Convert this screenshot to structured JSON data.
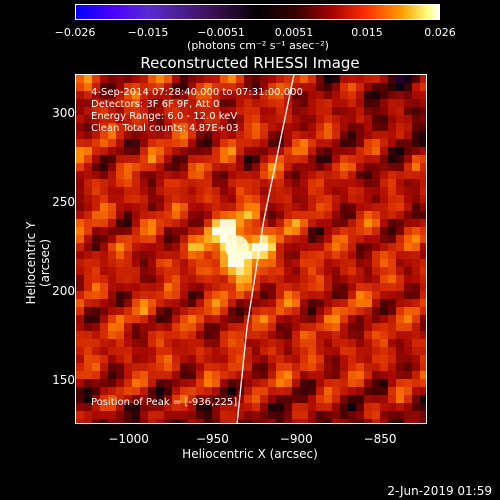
{
  "colorbar": {
    "ticks": [
      "-0.026",
      "-0.015",
      "-0.0051",
      "0.0051",
      "0.015",
      "0.026"
    ],
    "units": "(photons cm⁻² s⁻¹ asec⁻²)"
  },
  "title": "Reconstructed RHESSI Image",
  "info": {
    "time_range": "4-Sep-2014 07:28:40.000 to 07:31:00.000",
    "detectors": "Detectors: 3F 6F 9F, Att 0",
    "energy": "Energy Range: 6.0 - 12.0 keV",
    "clean": "Clean     Total counts: 4.87E+03",
    "peak": "Position of Peak = [-936,225]"
  },
  "axes": {
    "xlabel": "Heliocentric X (arcsec)",
    "ylabel": "Heliocentric Y (arcsec)",
    "xticks": [
      "−1000",
      "−950",
      "−900",
      "−850"
    ],
    "yticks": [
      "300",
      "250",
      "200",
      "150"
    ]
  },
  "stamp": "2-Jun-2019 01:59",
  "chart_data": {
    "type": "heatmap",
    "title": "Reconstructed RHESSI Image",
    "xlabel": "Heliocentric X (arcsec)",
    "ylabel": "Heliocentric Y (arcsec)",
    "xlim": [
      -1032,
      -822
    ],
    "ylim": [
      125,
      322
    ],
    "xticks": [
      -1000,
      -950,
      -900,
      -850
    ],
    "yticks": [
      150,
      200,
      250,
      300
    ],
    "colorbar_range": [
      -0.026,
      0.026
    ],
    "peak": [
      -936,
      225
    ],
    "limb_curve": [
      [
        -936,
        125
      ],
      [
        -930,
        180
      ],
      [
        -920,
        240
      ],
      [
        -902,
        322
      ]
    ]
  }
}
